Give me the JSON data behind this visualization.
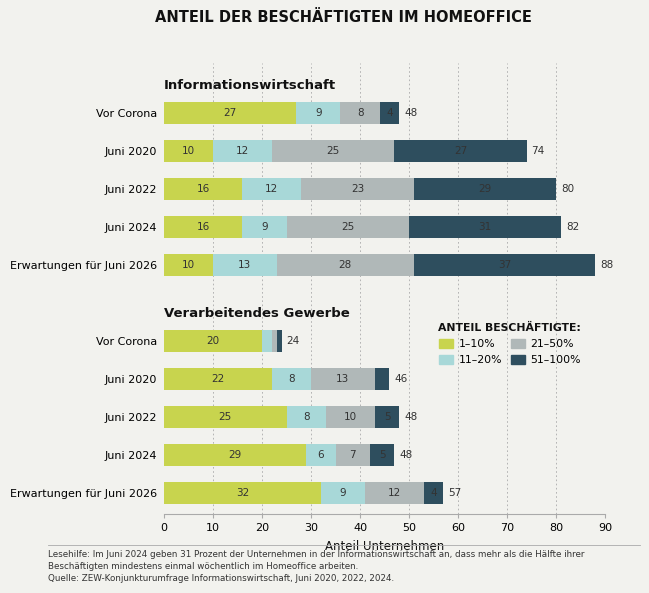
{
  "title": "ANTEIL DER BESCHÄFTIGTEN IM HOMEOFFICE",
  "xlabel": "Anteil Unternehmen",
  "colors": {
    "c1": "#c8d44e",
    "c2": "#a8d8d8",
    "c3": "#b0b8b8",
    "c4": "#2e4e5e"
  },
  "legend_labels": [
    "1–10%",
    "11–20%",
    "21–50%",
    "51–100%"
  ],
  "legend_title": "ANTEIL BESCHÄFTIGTE:",
  "section1_label": "Informationswirtschaft",
  "section1_rows": [
    {
      "label": "Vor Corona",
      "values": [
        27,
        9,
        8,
        4
      ],
      "total": 48
    },
    {
      "label": "Juni 2020",
      "values": [
        10,
        12,
        25,
        27
      ],
      "total": 74
    },
    {
      "label": "Juni 2022",
      "values": [
        16,
        12,
        23,
        29
      ],
      "total": 80
    },
    {
      "label": "Juni 2024",
      "values": [
        16,
        9,
        25,
        31
      ],
      "total": 82
    },
    {
      "label": "Erwartungen für Juni 2026",
      "values": [
        10,
        13,
        28,
        37
      ],
      "total": 88
    }
  ],
  "section2_label": "Verarbeitendes Gewerbe",
  "section2_rows": [
    {
      "label": "Vor Corona",
      "values": [
        20,
        2,
        1,
        1
      ],
      "total": 24
    },
    {
      "label": "Juni 2020",
      "values": [
        22,
        8,
        13,
        3
      ],
      "total": 46
    },
    {
      "label": "Juni 2022",
      "values": [
        25,
        8,
        10,
        5
      ],
      "total": 48
    },
    {
      "label": "Juni 2024",
      "values": [
        29,
        6,
        7,
        5
      ],
      "total": 48
    },
    {
      "label": "Erwartungen für Juni 2026",
      "values": [
        32,
        9,
        12,
        4
      ],
      "total": 57
    }
  ],
  "footnote_line1": "Lesehilfe: Im Juni 2024 geben 31 Prozent der Unternehmen in der Informationswirtschaft an, dass mehr als die Hälfte ihrer",
  "footnote_line2": "Beschäftigten mindestens einmal wöchentlich im Homeoffice arbeiten.",
  "footnote_line3": "Quelle: ZEW-Konjunkturumfrage Informationswirtschaft, Juni 2020, 2022, 2024.",
  "xlim": [
    0,
    90
  ],
  "xticks": [
    0,
    10,
    20,
    30,
    40,
    50,
    60,
    70,
    80,
    90
  ],
  "background_color": "#f2f2ee"
}
